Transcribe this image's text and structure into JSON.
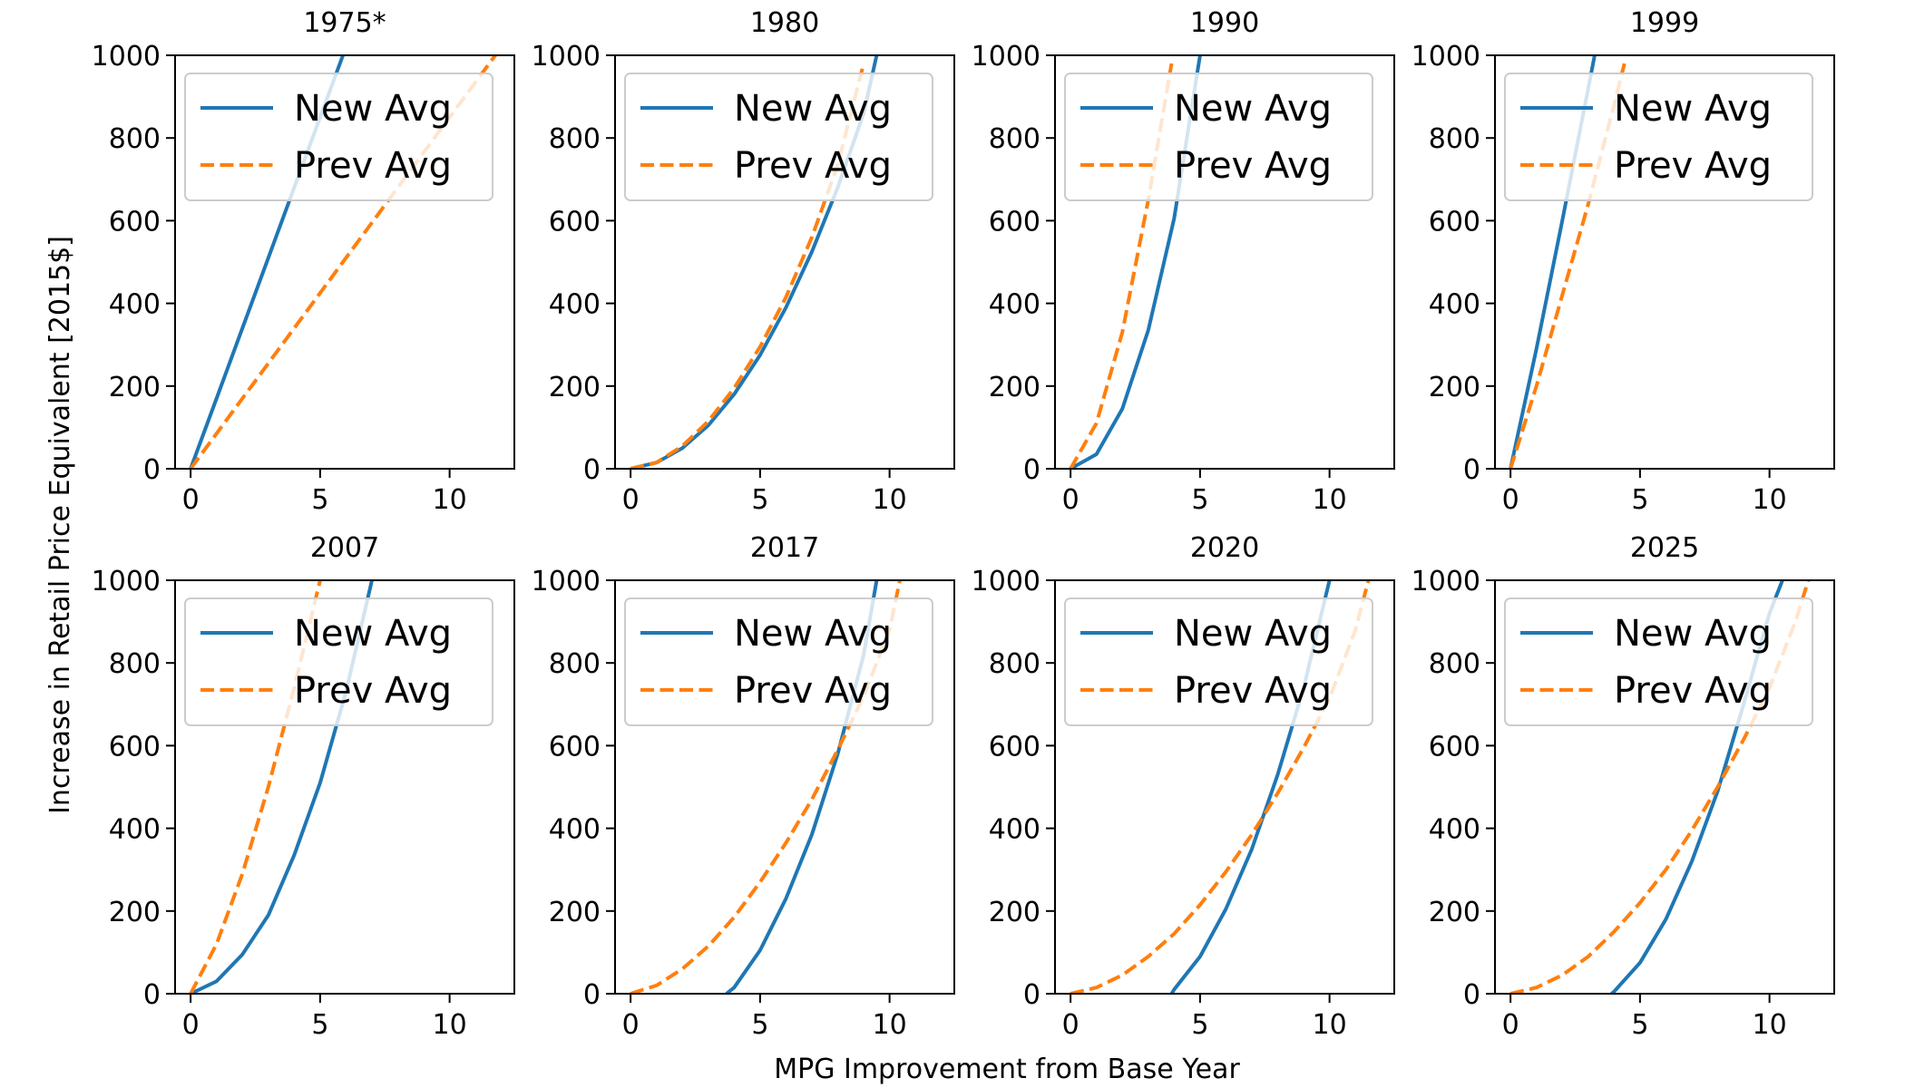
{
  "figure": {
    "xlabel": "MPG Improvement from Base Year",
    "ylabel": "Increase in Retail Price Equivalent [2015$]",
    "colors": {
      "new_avg": "#1f77b4",
      "prev_avg": "#ff7f0e"
    }
  },
  "chart_data": [
    {
      "type": "line",
      "title": "1975*",
      "xlim": [
        -0.6,
        12.5
      ],
      "ylim": [
        0,
        1000
      ],
      "xticks": [
        0,
        5,
        10
      ],
      "yticks": [
        0,
        200,
        400,
        600,
        800,
        1000
      ],
      "legend": "top-left",
      "series": [
        {
          "name": "New Avg",
          "color": "#1f77b4",
          "style": "solid",
          "x": [
            0,
            1,
            2,
            3,
            4,
            5,
            6
          ],
          "y": [
            0,
            170,
            340,
            510,
            680,
            850,
            1020
          ]
        },
        {
          "name": "Prev Avg",
          "color": "#ff7f0e",
          "style": "dashed",
          "x": [
            0,
            2,
            4,
            6,
            8,
            10,
            12
          ],
          "y": [
            0,
            170,
            340,
            510,
            680,
            850,
            1020
          ]
        }
      ]
    },
    {
      "type": "line",
      "title": "1980",
      "xlim": [
        -0.6,
        12.5
      ],
      "ylim": [
        0,
        1000
      ],
      "xticks": [
        0,
        5,
        10
      ],
      "yticks": [
        0,
        200,
        400,
        600,
        800,
        1000
      ],
      "legend": "top-left",
      "series": [
        {
          "name": "New Avg",
          "color": "#1f77b4",
          "style": "solid",
          "x": [
            0,
            1,
            2,
            3,
            4,
            5,
            6,
            7,
            8,
            9,
            9.5
          ],
          "y": [
            0,
            15,
            50,
            105,
            180,
            275,
            390,
            525,
            680,
            860,
            1000
          ]
        },
        {
          "name": "Prev Avg",
          "color": "#ff7f0e",
          "style": "dashed",
          "x": [
            0,
            1,
            2,
            3,
            4,
            5,
            6,
            7,
            8,
            9
          ],
          "y": [
            0,
            15,
            55,
            115,
            195,
            295,
            415,
            560,
            735,
            980
          ]
        }
      ]
    },
    {
      "type": "line",
      "title": "1990",
      "xlim": [
        -0.6,
        12.5
      ],
      "ylim": [
        0,
        1000
      ],
      "xticks": [
        0,
        5,
        10
      ],
      "yticks": [
        0,
        200,
        400,
        600,
        800,
        1000
      ],
      "legend": "top-left",
      "series": [
        {
          "name": "New Avg",
          "color": "#1f77b4",
          "style": "solid",
          "x": [
            0,
            1,
            2,
            3,
            4,
            5
          ],
          "y": [
            0,
            35,
            145,
            335,
            605,
            1000
          ]
        },
        {
          "name": "Prev Avg",
          "color": "#ff7f0e",
          "style": "dashed",
          "x": [
            0,
            1,
            2,
            3,
            3.9
          ],
          "y": [
            0,
            110,
            330,
            650,
            980
          ]
        }
      ]
    },
    {
      "type": "line",
      "title": "1999",
      "xlim": [
        -0.6,
        12.5
      ],
      "ylim": [
        0,
        1000
      ],
      "xticks": [
        0,
        5,
        10
      ],
      "yticks": [
        0,
        200,
        400,
        600,
        800,
        1000
      ],
      "legend": "top-left",
      "series": [
        {
          "name": "New Avg",
          "color": "#1f77b4",
          "style": "solid",
          "x": [
            0,
            1,
            2,
            3,
            3.25
          ],
          "y": [
            0,
            290,
            600,
            920,
            1000
          ]
        },
        {
          "name": "Prev Avg",
          "color": "#ff7f0e",
          "style": "dashed",
          "x": [
            0,
            1,
            2,
            3,
            4,
            4.4
          ],
          "y": [
            0,
            200,
            420,
            640,
            880,
            980
          ]
        }
      ]
    },
    {
      "type": "line",
      "title": "2007",
      "xlim": [
        -0.6,
        12.5
      ],
      "ylim": [
        0,
        1000
      ],
      "xticks": [
        0,
        5,
        10
      ],
      "yticks": [
        0,
        200,
        400,
        600,
        800,
        1000
      ],
      "legend": "top-left",
      "series": [
        {
          "name": "New Avg",
          "color": "#1f77b4",
          "style": "solid",
          "x": [
            0,
            1,
            2,
            3,
            4,
            5,
            6,
            7
          ],
          "y": [
            0,
            30,
            95,
            190,
            335,
            510,
            730,
            1000
          ]
        },
        {
          "name": "Prev Avg",
          "color": "#ff7f0e",
          "style": "dashed",
          "x": [
            0,
            1,
            2,
            3,
            4,
            5
          ],
          "y": [
            0,
            120,
            290,
            500,
            740,
            1000
          ]
        }
      ]
    },
    {
      "type": "line",
      "title": "2017",
      "xlim": [
        -0.6,
        12.5
      ],
      "ylim": [
        0,
        1000
      ],
      "xticks": [
        0,
        5,
        10
      ],
      "yticks": [
        0,
        200,
        400,
        600,
        800,
        1000
      ],
      "legend": "top-left",
      "series": [
        {
          "name": "New Avg",
          "color": "#1f77b4",
          "style": "solid",
          "x": [
            3.7,
            4,
            5,
            6,
            7,
            8,
            9,
            9.5
          ],
          "y": [
            0,
            15,
            105,
            230,
            385,
            580,
            820,
            1000
          ]
        },
        {
          "name": "Prev Avg",
          "color": "#ff7f0e",
          "style": "dashed",
          "x": [
            0,
            1,
            2,
            3,
            4,
            5,
            6,
            7,
            8,
            9,
            10,
            10.4
          ],
          "y": [
            0,
            20,
            60,
            115,
            185,
            270,
            365,
            470,
            590,
            720,
            880,
            1000
          ]
        }
      ]
    },
    {
      "type": "line",
      "title": "2020",
      "xlim": [
        -0.6,
        12.5
      ],
      "ylim": [
        0,
        1000
      ],
      "xticks": [
        0,
        5,
        10
      ],
      "yticks": [
        0,
        200,
        400,
        600,
        800,
        1000
      ],
      "legend": "top-left",
      "series": [
        {
          "name": "New Avg",
          "color": "#1f77b4",
          "style": "solid",
          "x": [
            3.9,
            4,
            5,
            6,
            7,
            8,
            9,
            10
          ],
          "y": [
            0,
            10,
            90,
            205,
            350,
            530,
            740,
            1000
          ]
        },
        {
          "name": "Prev Avg",
          "color": "#ff7f0e",
          "style": "dashed",
          "x": [
            0,
            1,
            2,
            3,
            4,
            5,
            6,
            7,
            8,
            9,
            10,
            11,
            11.5
          ],
          "y": [
            0,
            15,
            45,
            90,
            145,
            215,
            295,
            385,
            485,
            595,
            715,
            880,
            1000
          ]
        }
      ]
    },
    {
      "type": "line",
      "title": "2025",
      "xlim": [
        -0.6,
        12.5
      ],
      "ylim": [
        0,
        1000
      ],
      "xticks": [
        0,
        5,
        10
      ],
      "yticks": [
        0,
        200,
        400,
        600,
        800,
        1000
      ],
      "legend": "top-left",
      "series": [
        {
          "name": "New Avg",
          "color": "#1f77b4",
          "style": "solid",
          "x": [
            3.9,
            4,
            5,
            6,
            7,
            8,
            9,
            10,
            10.5
          ],
          "y": [
            0,
            5,
            75,
            180,
            320,
            490,
            700,
            920,
            1000
          ]
        },
        {
          "name": "Prev Avg",
          "color": "#ff7f0e",
          "style": "dashed",
          "x": [
            0,
            1,
            2,
            3,
            4,
            5,
            6,
            7,
            8,
            9,
            10,
            11,
            11.5
          ],
          "y": [
            0,
            15,
            45,
            90,
            150,
            220,
            300,
            395,
            500,
            615,
            740,
            900,
            1000
          ]
        }
      ]
    }
  ]
}
